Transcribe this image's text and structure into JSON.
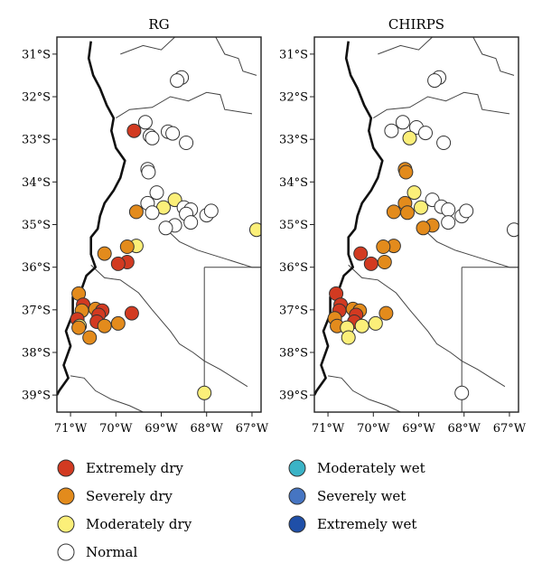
{
  "panels": [
    {
      "id": "rg",
      "title": "RG",
      "stations": [
        {
          "lon": -68.55,
          "lat": -31.55,
          "cls": "normal"
        },
        {
          "lon": -68.65,
          "lat": -31.62,
          "cls": "normal"
        },
        {
          "lon": -69.35,
          "lat": -32.6,
          "cls": "normal"
        },
        {
          "lon": -69.25,
          "lat": -32.92,
          "cls": "normal"
        },
        {
          "lon": -69.2,
          "lat": -32.97,
          "cls": "normal"
        },
        {
          "lon": -68.85,
          "lat": -32.82,
          "cls": "normal"
        },
        {
          "lon": -68.75,
          "lat": -32.86,
          "cls": "normal"
        },
        {
          "lon": -68.45,
          "lat": -33.08,
          "cls": "normal"
        },
        {
          "lon": -69.6,
          "lat": -32.8,
          "cls": "extremely_dry"
        },
        {
          "lon": -69.3,
          "lat": -33.7,
          "cls": "normal"
        },
        {
          "lon": -69.28,
          "lat": -33.77,
          "cls": "normal"
        },
        {
          "lon": -69.1,
          "lat": -34.25,
          "cls": "normal"
        },
        {
          "lon": -69.3,
          "lat": -34.5,
          "cls": "normal"
        },
        {
          "lon": -68.7,
          "lat": -34.42,
          "cls": "moderately_dry"
        },
        {
          "lon": -68.95,
          "lat": -34.6,
          "cls": "moderately_dry"
        },
        {
          "lon": -69.2,
          "lat": -34.72,
          "cls": "normal"
        },
        {
          "lon": -69.55,
          "lat": -34.7,
          "cls": "severely_dry"
        },
        {
          "lon": -68.5,
          "lat": -34.6,
          "cls": "normal"
        },
        {
          "lon": -68.35,
          "lat": -34.65,
          "cls": "normal"
        },
        {
          "lon": -68.45,
          "lat": -34.75,
          "cls": "normal"
        },
        {
          "lon": -68.0,
          "lat": -34.78,
          "cls": "normal"
        },
        {
          "lon": -67.9,
          "lat": -34.68,
          "cls": "normal"
        },
        {
          "lon": -68.35,
          "lat": -34.95,
          "cls": "normal"
        },
        {
          "lon": -68.7,
          "lat": -35.02,
          "cls": "normal"
        },
        {
          "lon": -68.9,
          "lat": -35.08,
          "cls": "normal"
        },
        {
          "lon": -66.9,
          "lat": -35.12,
          "cls": "moderately_dry"
        },
        {
          "lon": -69.55,
          "lat": -35.5,
          "cls": "moderately_dry"
        },
        {
          "lon": -69.75,
          "lat": -35.52,
          "cls": "severely_dry"
        },
        {
          "lon": -70.25,
          "lat": -35.68,
          "cls": "severely_dry"
        },
        {
          "lon": -69.75,
          "lat": -35.88,
          "cls": "extremely_dry"
        },
        {
          "lon": -69.95,
          "lat": -35.92,
          "cls": "extremely_dry"
        },
        {
          "lon": -70.82,
          "lat": -36.62,
          "cls": "severely_dry"
        },
        {
          "lon": -70.72,
          "lat": -36.88,
          "cls": "extremely_dry"
        },
        {
          "lon": -70.75,
          "lat": -37.02,
          "cls": "severely_dry"
        },
        {
          "lon": -70.45,
          "lat": -36.98,
          "cls": "severely_dry"
        },
        {
          "lon": -70.3,
          "lat": -37.02,
          "cls": "extremely_dry"
        },
        {
          "lon": -70.38,
          "lat": -37.12,
          "cls": "extremely_dry"
        },
        {
          "lon": -69.65,
          "lat": -37.08,
          "cls": "extremely_dry"
        },
        {
          "lon": -70.85,
          "lat": -37.22,
          "cls": "extremely_dry"
        },
        {
          "lon": -70.42,
          "lat": -37.28,
          "cls": "extremely_dry"
        },
        {
          "lon": -70.25,
          "lat": -37.38,
          "cls": "severely_dry"
        },
        {
          "lon": -69.95,
          "lat": -37.32,
          "cls": "severely_dry"
        },
        {
          "lon": -70.8,
          "lat": -37.38,
          "cls": "moderately_dry"
        },
        {
          "lon": -70.82,
          "lat": -37.42,
          "cls": "severely_dry"
        },
        {
          "lon": -70.58,
          "lat": -37.65,
          "cls": "severely_dry"
        },
        {
          "lon": -68.05,
          "lat": -38.95,
          "cls": "moderately_dry"
        }
      ]
    },
    {
      "id": "chirps",
      "title": "CHIRPS",
      "stations": [
        {
          "lon": -68.55,
          "lat": -31.55,
          "cls": "normal"
        },
        {
          "lon": -68.65,
          "lat": -31.62,
          "cls": "normal"
        },
        {
          "lon": -69.35,
          "lat": -32.6,
          "cls": "normal"
        },
        {
          "lon": -69.05,
          "lat": -32.72,
          "cls": "normal"
        },
        {
          "lon": -69.2,
          "lat": -32.97,
          "cls": "moderately_dry"
        },
        {
          "lon": -68.85,
          "lat": -32.85,
          "cls": "normal"
        },
        {
          "lon": -69.6,
          "lat": -32.8,
          "cls": "normal"
        },
        {
          "lon": -68.45,
          "lat": -33.08,
          "cls": "normal"
        },
        {
          "lon": -69.3,
          "lat": -33.7,
          "cls": "severely_dry"
        },
        {
          "lon": -69.28,
          "lat": -33.77,
          "cls": "severely_dry"
        },
        {
          "lon": -69.1,
          "lat": -34.25,
          "cls": "moderately_dry"
        },
        {
          "lon": -69.3,
          "lat": -34.5,
          "cls": "severely_dry"
        },
        {
          "lon": -68.7,
          "lat": -34.42,
          "cls": "normal"
        },
        {
          "lon": -68.95,
          "lat": -34.6,
          "cls": "moderately_dry"
        },
        {
          "lon": -69.25,
          "lat": -34.72,
          "cls": "severely_dry"
        },
        {
          "lon": -69.55,
          "lat": -34.7,
          "cls": "severely_dry"
        },
        {
          "lon": -68.5,
          "lat": -34.58,
          "cls": "normal"
        },
        {
          "lon": -68.35,
          "lat": -34.65,
          "cls": "normal"
        },
        {
          "lon": -68.05,
          "lat": -34.8,
          "cls": "normal"
        },
        {
          "lon": -67.95,
          "lat": -34.68,
          "cls": "normal"
        },
        {
          "lon": -68.35,
          "lat": -34.95,
          "cls": "normal"
        },
        {
          "lon": -68.7,
          "lat": -35.02,
          "cls": "severely_dry"
        },
        {
          "lon": -68.9,
          "lat": -35.08,
          "cls": "severely_dry"
        },
        {
          "lon": -66.9,
          "lat": -35.12,
          "cls": "normal"
        },
        {
          "lon": -69.55,
          "lat": -35.5,
          "cls": "severely_dry"
        },
        {
          "lon": -69.78,
          "lat": -35.52,
          "cls": "severely_dry"
        },
        {
          "lon": -70.28,
          "lat": -35.68,
          "cls": "extremely_dry"
        },
        {
          "lon": -69.75,
          "lat": -35.88,
          "cls": "severely_dry"
        },
        {
          "lon": -70.05,
          "lat": -35.92,
          "cls": "extremely_dry"
        },
        {
          "lon": -70.82,
          "lat": -36.62,
          "cls": "extremely_dry"
        },
        {
          "lon": -70.72,
          "lat": -36.88,
          "cls": "extremely_dry"
        },
        {
          "lon": -70.75,
          "lat": -37.02,
          "cls": "extremely_dry"
        },
        {
          "lon": -70.45,
          "lat": -36.98,
          "cls": "severely_dry"
        },
        {
          "lon": -70.3,
          "lat": -37.02,
          "cls": "severely_dry"
        },
        {
          "lon": -70.38,
          "lat": -37.12,
          "cls": "extremely_dry"
        },
        {
          "lon": -69.72,
          "lat": -37.08,
          "cls": "severely_dry"
        },
        {
          "lon": -70.85,
          "lat": -37.2,
          "cls": "severely_dry"
        },
        {
          "lon": -70.42,
          "lat": -37.28,
          "cls": "extremely_dry"
        },
        {
          "lon": -70.25,
          "lat": -37.38,
          "cls": "moderately_dry"
        },
        {
          "lon": -69.95,
          "lat": -37.32,
          "cls": "moderately_dry"
        },
        {
          "lon": -70.8,
          "lat": -37.38,
          "cls": "severely_dry"
        },
        {
          "lon": -70.58,
          "lat": -37.42,
          "cls": "moderately_dry"
        },
        {
          "lon": -70.55,
          "lat": -37.65,
          "cls": "moderately_dry"
        },
        {
          "lon": -68.05,
          "lat": -38.95,
          "cls": "normal"
        }
      ]
    }
  ],
  "y_ticks": [
    {
      "lat": -31,
      "label": "31°S"
    },
    {
      "lat": -32,
      "label": "32°S"
    },
    {
      "lat": -33,
      "label": "33°S"
    },
    {
      "lat": -34,
      "label": "34°S"
    },
    {
      "lat": -35,
      "label": "35°S"
    },
    {
      "lat": -36,
      "label": "36°S"
    },
    {
      "lat": -37,
      "label": "37°S"
    },
    {
      "lat": -38,
      "label": "38°S"
    },
    {
      "lat": -39,
      "label": "39°S"
    }
  ],
  "x_ticks": [
    {
      "lon": -71,
      "label": "71°W"
    },
    {
      "lon": -70,
      "label": "70°W"
    },
    {
      "lon": -69,
      "label": "69°W"
    },
    {
      "lon": -68,
      "label": "68°W"
    },
    {
      "lon": -67,
      "label": "67°W"
    }
  ],
  "extent": {
    "lon": [
      -71.3,
      -66.8
    ],
    "lat": [
      -30.6,
      -39.4
    ]
  },
  "coastline": [
    [
      -70.55,
      -30.7
    ],
    [
      -70.6,
      -31.1
    ],
    [
      -70.5,
      -31.5
    ],
    [
      -70.35,
      -31.8
    ],
    [
      -70.2,
      -32.2
    ],
    [
      -70.05,
      -32.5
    ],
    [
      -70.1,
      -32.8
    ],
    [
      -70.0,
      -33.2
    ],
    [
      -69.8,
      -33.5
    ],
    [
      -69.9,
      -33.9
    ],
    [
      -70.05,
      -34.2
    ],
    [
      -70.25,
      -34.5
    ],
    [
      -70.35,
      -34.8
    ],
    [
      -70.4,
      -35.1
    ],
    [
      -70.55,
      -35.3
    ],
    [
      -70.55,
      -35.7
    ],
    [
      -70.45,
      -36.0
    ],
    [
      -70.65,
      -36.2
    ],
    [
      -70.75,
      -36.5
    ],
    [
      -70.95,
      -36.7
    ],
    [
      -70.95,
      -37.1
    ],
    [
      -71.1,
      -37.5
    ],
    [
      -71.0,
      -37.85
    ],
    [
      -71.15,
      -38.3
    ],
    [
      -71.05,
      -38.6
    ],
    [
      -71.25,
      -38.9
    ],
    [
      -71.3,
      -39.0
    ]
  ],
  "borders": [
    [
      [
        -70.0,
        -32.5
      ],
      [
        -69.7,
        -32.3
      ],
      [
        -69.2,
        -32.25
      ],
      [
        -68.8,
        -32.0
      ],
      [
        -68.4,
        -32.1
      ],
      [
        -68.0,
        -31.9
      ],
      [
        -67.7,
        -31.95
      ],
      [
        -67.6,
        -32.3
      ],
      [
        -67.0,
        -32.4
      ]
    ],
    [
      [
        -69.9,
        -31.0
      ],
      [
        -69.4,
        -30.8
      ],
      [
        -69.0,
        -30.9
      ],
      [
        -68.7,
        -30.6
      ]
    ],
    [
      [
        -67.8,
        -30.6
      ],
      [
        -67.6,
        -31.0
      ],
      [
        -67.3,
        -31.1
      ],
      [
        -67.2,
        -31.4
      ],
      [
        -66.9,
        -31.5
      ]
    ],
    [
      [
        -68.9,
        -35.1
      ],
      [
        -68.6,
        -35.4
      ],
      [
        -68.2,
        -35.6
      ],
      [
        -67.6,
        -35.8
      ],
      [
        -67.0,
        -36.0
      ],
      [
        -66.8,
        -36.0
      ]
    ],
    [
      [
        -70.55,
        -35.95
      ],
      [
        -70.25,
        -36.25
      ],
      [
        -69.9,
        -36.3
      ],
      [
        -69.5,
        -36.6
      ],
      [
        -69.2,
        -37.0
      ],
      [
        -68.8,
        -37.5
      ],
      [
        -68.6,
        -37.8
      ],
      [
        -68.3,
        -38.0
      ],
      [
        -68.05,
        -38.2
      ],
      [
        -67.7,
        -38.4
      ],
      [
        -67.4,
        -38.6
      ],
      [
        -67.1,
        -38.8
      ]
    ],
    [
      [
        -68.05,
        -36.0
      ],
      [
        -68.05,
        -39.4
      ]
    ],
    [
      [
        -68.05,
        -36.0
      ],
      [
        -66.8,
        -36.0
      ]
    ],
    [
      [
        -71.0,
        -38.55
      ],
      [
        -70.7,
        -38.6
      ],
      [
        -70.45,
        -38.9
      ],
      [
        -70.1,
        -39.1
      ],
      [
        -69.7,
        -39.25
      ],
      [
        -69.4,
        -39.4
      ]
    ]
  ],
  "legend": {
    "left": [
      {
        "cls": "extremely_dry",
        "label": "Extremely dry",
        "color": "#d23a21"
      },
      {
        "cls": "severely_dry",
        "label": "Severely dry",
        "color": "#e38b1c"
      },
      {
        "cls": "moderately_dry",
        "label": "Moderately dry",
        "color": "#fbef79"
      },
      {
        "cls": "normal",
        "label": "Normal",
        "color": "#ffffff"
      }
    ],
    "right": [
      {
        "cls": "moderately_wet",
        "label": "Moderately wet",
        "color": "#3ab3c6"
      },
      {
        "cls": "severely_wet",
        "label": "Severely wet",
        "color": "#4675c2"
      },
      {
        "cls": "extremely_wet",
        "label": "Extremely wet",
        "color": "#1f4fa8"
      }
    ]
  }
}
